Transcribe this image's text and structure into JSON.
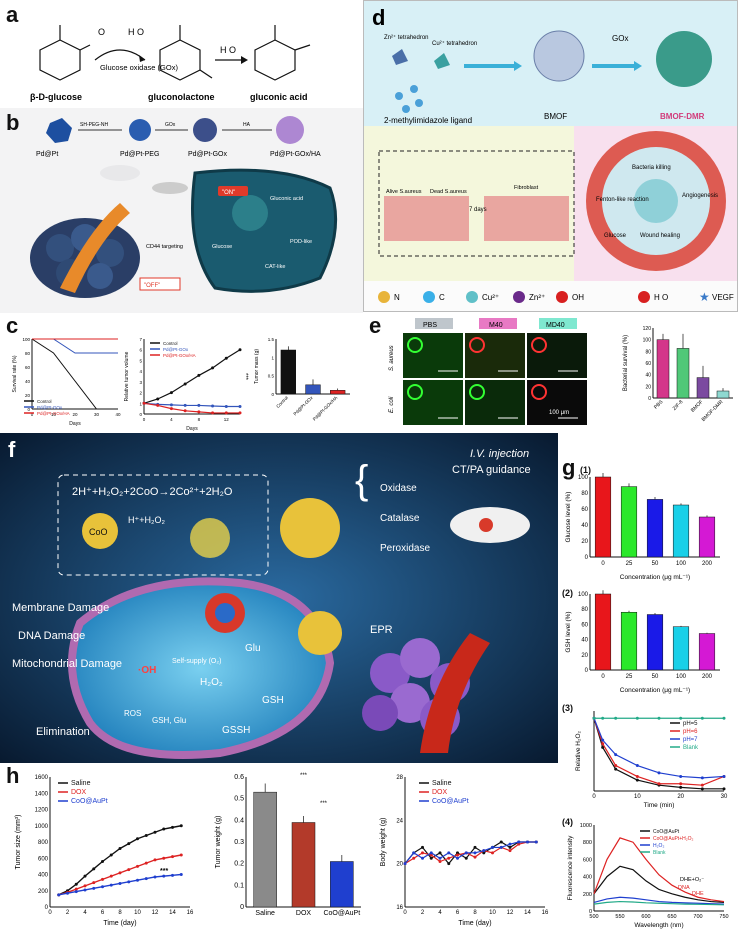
{
  "panels": {
    "a": {
      "label": "a",
      "reactant": "β-D-glucose",
      "o2": "O",
      "h2o2": "H O",
      "enzyme": "Glucose oxidase (GOx)",
      "intermediate": "gluconolactone",
      "water": "H O",
      "product": "gluconic acid"
    },
    "b": {
      "label": "b",
      "steps": [
        "Pd@Pt",
        "Pd@Pt-PEG",
        "Pd@Pt-GOx",
        "Pd@Pt-GOx/HA"
      ],
      "reagents": [
        "SH-PEG-NH",
        "GOx",
        "HA"
      ],
      "on_label": "\"ON\"",
      "off_label": "\"OFF\"",
      "targeting": "CD44 targeting",
      "glucose": "Glucose",
      "gluconic": "Gluconic acid",
      "cat_like": "CAT-like",
      "pod_like": "POD-like"
    },
    "c": {
      "label": "c",
      "legend": [
        "Control",
        "Pd@Pt-GOx",
        "Pd@Pt-GOx/HA"
      ],
      "survival_ylabel": "Survival rate (%)",
      "survival_xlabel": "Days",
      "volume_ylabel": "Relative tumor volume",
      "volume_xlabel": "Days",
      "mass_ylabel": "Tumor mass (g)",
      "stars": "***"
    },
    "d": {
      "label": "d",
      "zn": "Zn²⁺ tetrahedron",
      "cu": "Cu²⁺ tetrahedron",
      "ligand": "2-methylimidazole ligand",
      "bmof": "BMOF",
      "gox": "GOx",
      "bmof_dmr": "BMOF-DMR",
      "alive": "Alive S.aureus",
      "dead": "Dead S.aureus",
      "fibroblast": "Fibroblast",
      "days": "7 days",
      "cycle": [
        "Bacteria killing",
        "Fenton-like reaction",
        "Angiogenesis",
        "Wound healing",
        "Glucose"
      ],
      "legend": [
        "N",
        "C",
        "Cu²⁺",
        "Zn²⁺",
        "OH",
        "H O",
        "VEGF"
      ]
    },
    "e": {
      "label": "e",
      "cols": [
        "PBS",
        "M40",
        "MD40"
      ],
      "rows": [
        "S. aureus",
        "E. coli"
      ],
      "scale": "100 μm",
      "ylabel": "Bacterial survival (%)"
    },
    "f": {
      "label": "f",
      "equation": "2H⁺+H₂O₂+2CoO→2Co²⁺+2H₂O",
      "coo": "CoO",
      "hh": "H⁺+H₂O₂",
      "enzymes": [
        "Oxidase",
        "Catalase",
        "Peroxidase"
      ],
      "iv": "I.V. injection",
      "guidance": "CT/PA guidance",
      "damage": [
        "Membrane Damage",
        "DNA Damage",
        "Mitochondrial Damage"
      ],
      "elimination": "Elimination",
      "epr": "EPR",
      "glu": "Glu",
      "h2o2": "H₂O₂",
      "gsh": "GSH",
      "gssh": "GSSH",
      "ros": "ROS",
      "gshglu": "GSH, Glu",
      "oh": "·OH",
      "selfsupply": "Self-supply (O₂)"
    },
    "g": {
      "label": "g",
      "sub1": "(1)",
      "sub2": "(2)",
      "sub3": "(3)",
      "sub4": "(4)",
      "ylabel1": "Glucose level (%)",
      "ylabel2": "GSH level (%)",
      "xlabel": "Concentration (μg mL⁻¹)",
      "ylabel3": "Relative H₂O₂",
      "xlabel3": "Time (min)",
      "legend3": [
        "pH=5",
        "pH=6",
        "pH=7",
        "Blank"
      ],
      "ylabel4": "Fluorescence intensity",
      "xlabel4": "Wavelength (nm)",
      "legend4": [
        "CoO@AuPt",
        "CoO@AuPt+H₂O₂",
        "H₂O₂",
        "Blank"
      ],
      "annot4": "DHE+O₂⁻",
      "annot4b": "DNA",
      "annot4c": "DHE"
    },
    "h": {
      "label": "h",
      "legend": [
        "Saline",
        "DOX",
        "CoO@AuPt"
      ],
      "size_ylabel": "Tumor size (mm³)",
      "xlabel": "Time (day)",
      "weight_ylabel": "Tumor weight (g)",
      "body_ylabel": "Body weight (g)",
      "stars": "***"
    }
  },
  "chart_data": [
    {
      "id": "c-survival",
      "type": "line",
      "x": [
        0,
        10,
        20,
        30,
        40
      ],
      "series": [
        {
          "name": "Control",
          "values": [
            100,
            80,
            40,
            0,
            0
          ]
        },
        {
          "name": "Pd@Pt-GOx",
          "values": [
            100,
            100,
            80,
            80,
            80
          ]
        },
        {
          "name": "Pd@Pt-GOx/HA",
          "values": [
            100,
            100,
            100,
            100,
            100
          ]
        }
      ],
      "xlabel": "Days",
      "ylabel": "Survival rate (%)",
      "ylim": [
        0,
        100
      ],
      "xlim": [
        0,
        40
      ],
      "yticks": [
        0,
        20,
        40,
        60,
        80,
        100
      ],
      "xticks": [
        0,
        10,
        20,
        30,
        40
      ]
    },
    {
      "id": "c-volume",
      "type": "line",
      "x": [
        0,
        2,
        4,
        6,
        8,
        10,
        12,
        14
      ],
      "series": [
        {
          "name": "Control",
          "values": [
            1,
            1.4,
            2.0,
            2.8,
            3.6,
            4.3,
            5.2,
            6.0
          ]
        },
        {
          "name": "Pd@Pt-GOx",
          "values": [
            1,
            0.9,
            0.85,
            0.8,
            0.8,
            0.75,
            0.7,
            0.7
          ]
        },
        {
          "name": "Pd@Pt-GOx/HA",
          "values": [
            1,
            0.8,
            0.5,
            0.3,
            0.2,
            0.1,
            0.1,
            0.1
          ]
        }
      ],
      "xlabel": "Days",
      "ylabel": "Relative tumor volume",
      "ylim": [
        0,
        7
      ],
      "xlim": [
        0,
        14
      ],
      "yticks": [
        0,
        1,
        2,
        3,
        4,
        5,
        6,
        7
      ],
      "xticks": [
        0,
        4,
        8,
        12
      ]
    },
    {
      "id": "c-mass",
      "type": "bar",
      "categories": [
        "Control",
        "Pd@Pt-GOx",
        "Pd@Pt-GOx/HA"
      ],
      "values": [
        1.2,
        0.25,
        0.1
      ],
      "errors": [
        0.1,
        0.15,
        0.05
      ],
      "colors": [
        "#111111",
        "#3355bb",
        "#dd2222"
      ],
      "ylabel": "Tumor mass (g)",
      "ylim": [
        0,
        1.5
      ],
      "yticks": [
        0,
        0.5,
        1.0,
        1.5
      ]
    },
    {
      "id": "e-survival",
      "type": "bar",
      "categories": [
        "PBS",
        "ZIF-8",
        "BMOF",
        "BMOF-DMR"
      ],
      "values": [
        100,
        85,
        35,
        12
      ],
      "errors": [
        10,
        25,
        20,
        5
      ],
      "colors": [
        "#d4368a",
        "#50c878",
        "#7b4aa0",
        "#8ed8d0"
      ],
      "ylabel": "Bacterial survival (%)",
      "ylim": [
        0,
        120
      ],
      "yticks": [
        0,
        20,
        40,
        60,
        80,
        100,
        120
      ]
    },
    {
      "id": "g1",
      "type": "bar",
      "categories": [
        "0",
        "25",
        "50",
        "100",
        "200"
      ],
      "values": [
        100,
        88,
        72,
        65,
        50
      ],
      "errors": [
        6,
        4,
        3,
        2,
        2
      ],
      "colors": [
        "#e8161b",
        "#2ae82a",
        "#1a1ae8",
        "#19d0e8",
        "#d419d4"
      ],
      "ylabel": "Glucose level (%)",
      "xlabel": "Concentration (μg mL⁻¹)",
      "ylim": [
        0,
        100
      ],
      "yticks": [
        0,
        20,
        40,
        60,
        80,
        100
      ]
    },
    {
      "id": "g2",
      "type": "bar",
      "categories": [
        "0",
        "25",
        "50",
        "100",
        "200"
      ],
      "values": [
        100,
        76,
        73,
        57,
        48
      ],
      "errors": [
        5,
        2,
        2,
        1,
        1
      ],
      "colors": [
        "#e8161b",
        "#2ae82a",
        "#1a1ae8",
        "#19d0e8",
        "#d419d4"
      ],
      "ylabel": "GSH level (%)",
      "xlabel": "Concentration (μg mL⁻¹)",
      "ylim": [
        0,
        100
      ],
      "yticks": [
        0,
        20,
        40,
        60,
        80,
        100
      ]
    },
    {
      "id": "g3",
      "type": "line",
      "x": [
        0,
        2,
        5,
        10,
        15,
        20,
        25,
        30
      ],
      "series": [
        {
          "name": "pH=5",
          "values": [
            1.0,
            0.6,
            0.3,
            0.15,
            0.08,
            0.05,
            0.03,
            0.03
          ]
        },
        {
          "name": "pH=6",
          "values": [
            1.0,
            0.65,
            0.35,
            0.2,
            0.1,
            0.1,
            0.08,
            0.2
          ]
        },
        {
          "name": "pH=7",
          "values": [
            1.0,
            0.7,
            0.5,
            0.35,
            0.25,
            0.2,
            0.18,
            0.2
          ]
        },
        {
          "name": "Blank",
          "values": [
            1.0,
            1.0,
            1.0,
            1.0,
            1.0,
            1.0,
            1.0,
            1.0
          ]
        }
      ],
      "colors": [
        "#111111",
        "#dd2222",
        "#1f3fcf",
        "#22aa88"
      ],
      "xlabel": "Time (min)",
      "ylabel": "Relative H₂O₂",
      "ylim": [
        0,
        1.1
      ],
      "xlim": [
        0,
        30
      ],
      "xticks": [
        0,
        10,
        20,
        30
      ]
    },
    {
      "id": "g4",
      "type": "line",
      "x": [
        500,
        525,
        550,
        575,
        600,
        625,
        650,
        675,
        700,
        725,
        750
      ],
      "series": [
        {
          "name": "CoO@AuPt",
          "values": [
            200,
            400,
            520,
            480,
            350,
            250,
            200,
            160,
            130,
            110,
            100
          ]
        },
        {
          "name": "CoO@AuPt+H₂O₂",
          "values": [
            200,
            600,
            850,
            800,
            600,
            420,
            300,
            220,
            160,
            130,
            110
          ]
        },
        {
          "name": "H₂O₂",
          "values": [
            100,
            140,
            160,
            150,
            130,
            110,
            100,
            95,
            90,
            85,
            80
          ]
        },
        {
          "name": "Blank",
          "values": [
            80,
            100,
            110,
            105,
            95,
            90,
            85,
            80,
            78,
            75,
            72
          ]
        }
      ],
      "colors": [
        "#111111",
        "#dd2222",
        "#1f3fcf",
        "#22aa88"
      ],
      "xlabel": "Wavelength (nm)",
      "ylabel": "Fluorescence intensity",
      "ylim": [
        0,
        1000
      ],
      "xlim": [
        500,
        750
      ],
      "yticks": [
        0,
        200,
        400,
        600,
        800,
        1000
      ],
      "xticks": [
        500,
        550,
        600,
        650,
        700,
        750
      ]
    },
    {
      "id": "h-size",
      "type": "line",
      "x": [
        1,
        2,
        3,
        4,
        5,
        6,
        7,
        8,
        9,
        10,
        11,
        12,
        13,
        14,
        15
      ],
      "series": [
        {
          "name": "Saline",
          "values": [
            150,
            200,
            280,
            380,
            470,
            560,
            640,
            720,
            780,
            840,
            880,
            920,
            960,
            980,
            1000
          ]
        },
        {
          "name": "DOX",
          "values": [
            150,
            180,
            220,
            260,
            300,
            340,
            380,
            420,
            460,
            500,
            540,
            580,
            600,
            620,
            640
          ]
        },
        {
          "name": "CoO@AuPt",
          "values": [
            150,
            170,
            190,
            210,
            230,
            250,
            270,
            290,
            310,
            330,
            350,
            370,
            380,
            390,
            400
          ]
        }
      ],
      "colors": [
        "#111111",
        "#dd2222",
        "#1f3fcf"
      ],
      "xlabel": "Time (day)",
      "ylabel": "Tumor size (mm³)",
      "ylim": [
        0,
        1600
      ],
      "xlim": [
        0,
        16
      ],
      "yticks": [
        0,
        200,
        400,
        600,
        800,
        1000,
        1200,
        1400,
        1600
      ],
      "xticks": [
        0,
        2,
        4,
        6,
        8,
        10,
        12,
        14,
        16
      ]
    },
    {
      "id": "h-weight",
      "type": "bar",
      "categories": [
        "Saline",
        "DOX",
        "CoO@AuPt"
      ],
      "values": [
        0.53,
        0.39,
        0.21
      ],
      "errors": [
        0.04,
        0.03,
        0.03
      ],
      "colors": [
        "#8a8a8a",
        "#b33a2a",
        "#1f3fcf"
      ],
      "ylabel": "Tumor weight (g)",
      "ylim": [
        0,
        0.6
      ],
      "yticks": [
        0,
        0.1,
        0.2,
        0.3,
        0.4,
        0.5,
        0.6
      ]
    },
    {
      "id": "h-body",
      "type": "line",
      "x": [
        0,
        1,
        2,
        3,
        4,
        5,
        6,
        7,
        8,
        9,
        10,
        11,
        12,
        13,
        14,
        15
      ],
      "series": [
        {
          "name": "Saline",
          "values": [
            20,
            21,
            21.5,
            20.5,
            21,
            20,
            21,
            20.5,
            21.5,
            21,
            21.5,
            22,
            21.5,
            22,
            22,
            22
          ]
        },
        {
          "name": "DOX",
          "values": [
            20,
            20.5,
            21,
            20.8,
            20.2,
            20.5,
            20.8,
            21,
            20.6,
            21.2,
            21,
            21.5,
            21.2,
            21.8,
            22,
            22
          ]
        },
        {
          "name": "CoO@AuPt",
          "values": [
            20,
            21,
            20.5,
            21,
            20.5,
            21,
            20.5,
            21,
            21,
            21.2,
            21.5,
            21.5,
            21.8,
            22,
            22,
            22
          ]
        }
      ],
      "colors": [
        "#111111",
        "#dd2222",
        "#1f3fcf"
      ],
      "xlabel": "Time (day)",
      "ylabel": "Body weight (g)",
      "ylim": [
        16,
        28
      ],
      "xlim": [
        0,
        16
      ],
      "yticks": [
        16,
        20,
        24,
        28
      ],
      "xticks": [
        0,
        2,
        4,
        6,
        8,
        10,
        12,
        14,
        16
      ]
    }
  ]
}
